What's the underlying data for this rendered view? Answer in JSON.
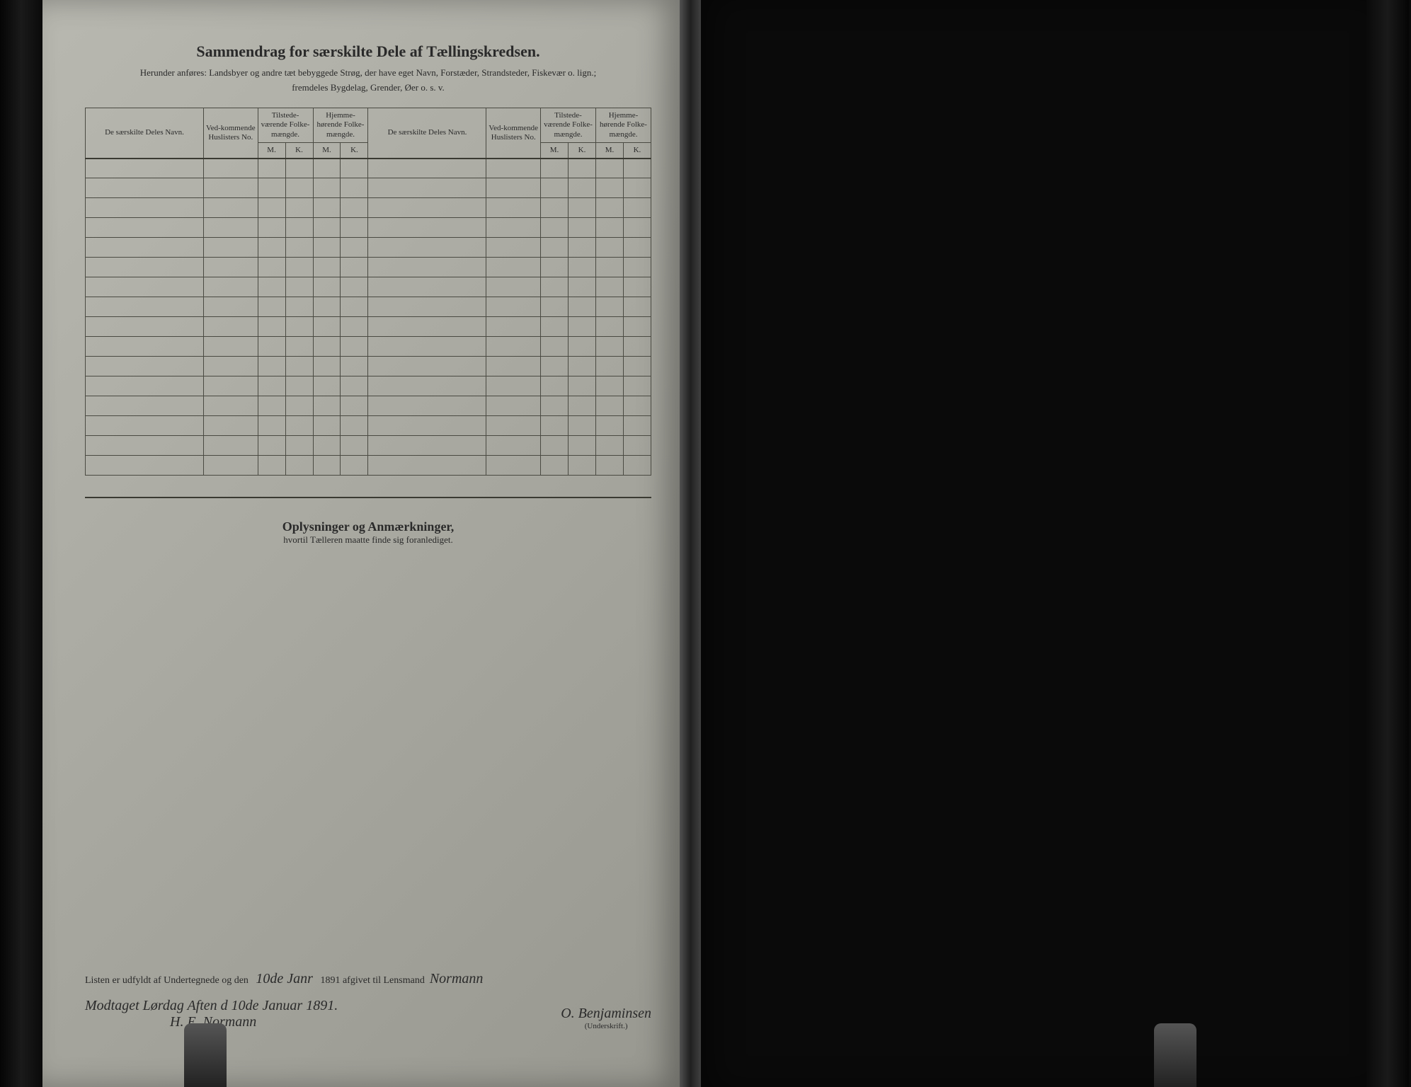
{
  "header": {
    "title": "Sammendrag for særskilte Dele af Tællingskredsen.",
    "subtitle_line1": "Herunder anføres: Landsbyer og andre tæt bebyggede Strøg, der have eget Navn, Forstæder, Strandsteder, Fiskevær o. lign.;",
    "subtitle_line2": "fremdeles Bygdelag, Grender, Øer o. s. v."
  },
  "table": {
    "columns": {
      "name": "De særskilte Deles Navn.",
      "huslisters": "Ved-kommende Huslisters No.",
      "tilstede": "Tilstede-værende Folke-mængde.",
      "hjemme": "Hjemme-hørende Folke-mængde.",
      "m": "M.",
      "k": "K."
    },
    "row_count": 16
  },
  "notes": {
    "title": "Oplysninger og Anmærkninger,",
    "subtitle": "hvortil Tælleren maatte finde sig foranlediget."
  },
  "footer": {
    "printed_prefix": "Listen er udfyldt af Undertegnede og den",
    "handwritten_date": "10de Janr",
    "printed_year": "1891 afgivet til Lensmand",
    "handwritten_lensmand": "Normann",
    "handwritten_line2": "Modtaget Lørdag Aften d 10de Januar 1891.",
    "handwritten_sig1": "H. E. Normann",
    "handwritten_sig2": "O. Benjaminsen",
    "underskrift_label": "(Underskrift.)"
  },
  "colors": {
    "page_bg": "#a8a8a0",
    "right_page_bg": "#6e6e66",
    "text": "#2a2a2a",
    "border": "#4a4a42"
  }
}
